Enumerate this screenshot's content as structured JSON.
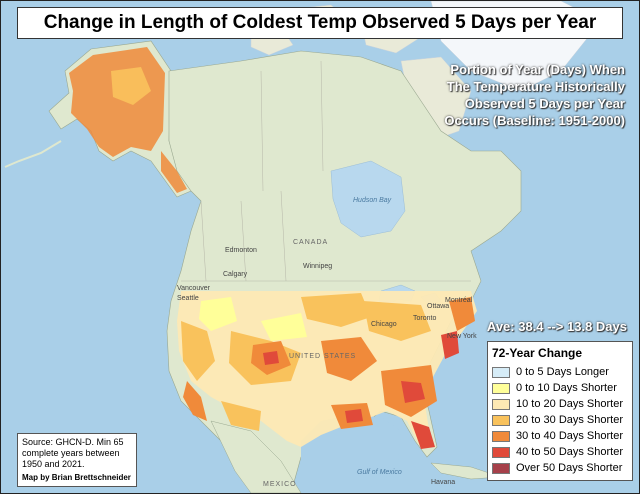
{
  "title": "Change in Length of Coldest Temp Observed 5 Days per Year",
  "subtitle_lines": [
    "Portion of Year (Days) When",
    "The Temperature Historically",
    "Observed 5 Days per Year",
    "Occurs (Baseline: 1951-2000)"
  ],
  "average": "Ave: 38.4 --> 13.8 Days",
  "legend": {
    "title": "72-Year Change",
    "items": [
      {
        "label": "0 to 5 Days Longer",
        "color": "#d6ecf7"
      },
      {
        "label": "0 to 10 Days Shorter",
        "color": "#ffff99"
      },
      {
        "label": "10 to 20 Days Shorter",
        "color": "#fde9b4"
      },
      {
        "label": "20 to 30 Days Shorter",
        "color": "#f9c25c"
      },
      {
        "label": "30 to 40 Days Shorter",
        "color": "#f08a3a"
      },
      {
        "label": "40 to 50 Days Shorter",
        "color": "#e04a3a"
      },
      {
        "label": "Over 50  Days Shorter",
        "color": "#a6404a"
      }
    ]
  },
  "source": {
    "lines": [
      "Source: GHCN-D. Min 65",
      "complete years between",
      "1950 and 2021."
    ],
    "credit": "Map by Brian Brettschneider"
  },
  "places": {
    "canada": "CANADA",
    "united_states": "UNITED STATES",
    "mexico": "MEXICO",
    "hudson_bay": "Hudson Bay",
    "gulf_of_mexico": "Gulf of Mexico",
    "edmonton": "Edmonton",
    "calgary": "Calgary",
    "vancouver": "Vancouver",
    "seattle": "Seattle",
    "ottawa": "Ottawa",
    "montreal": "Montréal",
    "toronto": "Toronto",
    "chicago": "Chicago",
    "new_york": "New York",
    "havana": "Havana",
    "winnipeg": "Winnipeg"
  },
  "colors": {
    "ocean": "#a9cfe8",
    "land": "#dfe8cf",
    "land_alt": "#e9ead8",
    "ice": "#f4f7fa",
    "water_body": "#b8d8ee"
  }
}
